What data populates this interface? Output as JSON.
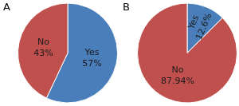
{
  "chart_data": [
    {
      "type": "pie",
      "title": "A",
      "categories": [
        "Yes",
        "No"
      ],
      "values": [
        57,
        43
      ],
      "value_labels": [
        "57%",
        "43%"
      ],
      "colors": [
        "#4a7ebb",
        "#c0504d"
      ],
      "data_labels": true
    },
    {
      "type": "pie",
      "title": "B",
      "categories": [
        "Yes",
        "No"
      ],
      "values": [
        12.6,
        87.94
      ],
      "value_labels": [
        "12.6%",
        "87.94%"
      ],
      "colors": [
        "#4a7ebb",
        "#c0504d"
      ],
      "data_labels": true
    }
  ]
}
